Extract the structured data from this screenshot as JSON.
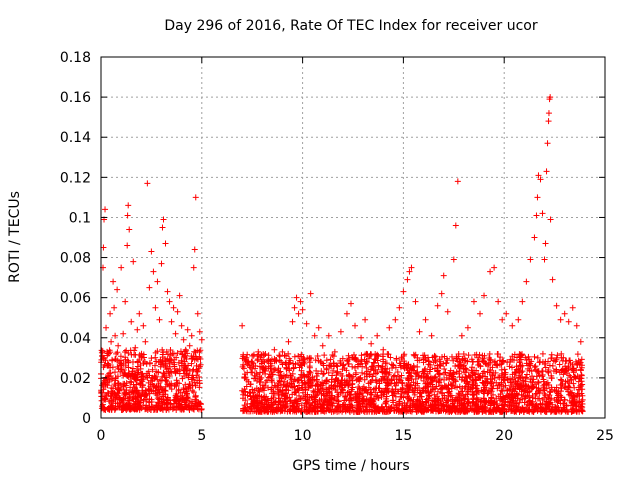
{
  "chart_data": {
    "type": "scatter",
    "title": "Day 296 of 2016, Rate Of TEC Index for receiver ucor",
    "xlabel": "GPS time / hours",
    "ylabel": "ROTI / TECUs",
    "xlim": [
      0,
      25
    ],
    "ylim": [
      0,
      0.18
    ],
    "x_ticks": [
      0,
      5,
      10,
      15,
      20,
      25
    ],
    "x_tick_labels": [
      "0",
      "5",
      "10",
      "15",
      "20",
      "25"
    ],
    "y_ticks": [
      0,
      0.02,
      0.04,
      0.06,
      0.08,
      0.1,
      0.12,
      0.14,
      0.16,
      0.18
    ],
    "y_tick_labels": [
      "0",
      "0.02",
      "0.04",
      "0.06",
      "0.08",
      "0.1",
      "0.12",
      "0.14",
      "0.16",
      "0.18"
    ],
    "grid": true,
    "marker": "+",
    "color": "#ff0000",
    "series": [
      {
        "name": "ROTI",
        "points": [
          [
            0.0,
            0.022
          ],
          [
            0.05,
            0.031
          ],
          [
            0.1,
            0.075
          ],
          [
            0.12,
            0.085
          ],
          [
            0.15,
            0.099
          ],
          [
            0.2,
            0.104
          ],
          [
            0.25,
            0.045
          ],
          [
            0.3,
            0.033
          ],
          [
            0.35,
            0.026
          ],
          [
            0.4,
            0.018
          ],
          [
            0.45,
            0.052
          ],
          [
            0.5,
            0.038
          ],
          [
            0.55,
            0.029
          ],
          [
            0.6,
            0.068
          ],
          [
            0.65,
            0.055
          ],
          [
            0.7,
            0.041
          ],
          [
            0.75,
            0.032
          ],
          [
            0.8,
            0.064
          ],
          [
            0.85,
            0.036
          ],
          [
            0.9,
            0.028
          ],
          [
            1.0,
            0.075
          ],
          [
            1.1,
            0.042
          ],
          [
            1.2,
            0.058
          ],
          [
            1.3,
            0.086
          ],
          [
            1.32,
            0.101
          ],
          [
            1.35,
            0.106
          ],
          [
            1.4,
            0.094
          ],
          [
            1.5,
            0.048
          ],
          [
            1.6,
            0.078
          ],
          [
            1.7,
            0.035
          ],
          [
            1.8,
            0.044
          ],
          [
            1.9,
            0.052
          ],
          [
            2.0,
            0.031
          ],
          [
            2.1,
            0.046
          ],
          [
            2.2,
            0.038
          ],
          [
            2.3,
            0.117
          ],
          [
            2.4,
            0.065
          ],
          [
            2.5,
            0.083
          ],
          [
            2.6,
            0.073
          ],
          [
            2.7,
            0.055
          ],
          [
            2.8,
            0.068
          ],
          [
            2.9,
            0.049
          ],
          [
            3.0,
            0.077
          ],
          [
            3.05,
            0.095
          ],
          [
            3.1,
            0.099
          ],
          [
            3.2,
            0.087
          ],
          [
            3.3,
            0.063
          ],
          [
            3.4,
            0.058
          ],
          [
            3.5,
            0.048
          ],
          [
            3.6,
            0.055
          ],
          [
            3.7,
            0.042
          ],
          [
            3.8,
            0.053
          ],
          [
            3.9,
            0.061
          ],
          [
            4.0,
            0.046
          ],
          [
            4.1,
            0.039
          ],
          [
            4.2,
            0.034
          ],
          [
            4.3,
            0.044
          ],
          [
            4.4,
            0.036
          ],
          [
            4.5,
            0.041
          ],
          [
            4.6,
            0.075
          ],
          [
            4.65,
            0.084
          ],
          [
            4.7,
            0.11
          ],
          [
            4.8,
            0.052
          ],
          [
            4.9,
            0.043
          ],
          [
            5.0,
            0.039
          ],
          [
            7.0,
            0.046
          ],
          [
            7.2,
            0.028
          ],
          [
            7.5,
            0.031
          ],
          [
            7.8,
            0.033
          ],
          [
            8.0,
            0.025
          ],
          [
            8.3,
            0.029
          ],
          [
            8.6,
            0.034
          ],
          [
            9.0,
            0.033
          ],
          [
            9.3,
            0.038
          ],
          [
            9.5,
            0.048
          ],
          [
            9.6,
            0.055
          ],
          [
            9.7,
            0.06
          ],
          [
            9.8,
            0.052
          ],
          [
            9.9,
            0.058
          ],
          [
            10.0,
            0.054
          ],
          [
            10.2,
            0.047
          ],
          [
            10.4,
            0.062
          ],
          [
            10.6,
            0.041
          ],
          [
            10.8,
            0.045
          ],
          [
            11.0,
            0.036
          ],
          [
            11.3,
            0.041
          ],
          [
            11.6,
            0.033
          ],
          [
            11.9,
            0.043
          ],
          [
            12.2,
            0.052
          ],
          [
            12.4,
            0.057
          ],
          [
            12.6,
            0.046
          ],
          [
            12.9,
            0.04
          ],
          [
            13.1,
            0.049
          ],
          [
            13.4,
            0.037
          ],
          [
            13.7,
            0.041
          ],
          [
            14.0,
            0.034
          ],
          [
            14.3,
            0.045
          ],
          [
            14.6,
            0.049
          ],
          [
            14.8,
            0.055
          ],
          [
            15.0,
            0.063
          ],
          [
            15.2,
            0.069
          ],
          [
            15.3,
            0.073
          ],
          [
            15.4,
            0.075
          ],
          [
            15.6,
            0.058
          ],
          [
            15.8,
            0.043
          ],
          [
            16.1,
            0.049
          ],
          [
            16.4,
            0.041
          ],
          [
            16.7,
            0.056
          ],
          [
            16.9,
            0.062
          ],
          [
            17.0,
            0.071
          ],
          [
            17.2,
            0.053
          ],
          [
            17.5,
            0.079
          ],
          [
            17.6,
            0.096
          ],
          [
            17.7,
            0.118
          ],
          [
            17.9,
            0.041
          ],
          [
            18.2,
            0.045
          ],
          [
            18.5,
            0.058
          ],
          [
            18.8,
            0.052
          ],
          [
            19.0,
            0.061
          ],
          [
            19.3,
            0.073
          ],
          [
            19.5,
            0.075
          ],
          [
            19.7,
            0.058
          ],
          [
            19.9,
            0.049
          ],
          [
            20.1,
            0.052
          ],
          [
            20.4,
            0.046
          ],
          [
            20.7,
            0.049
          ],
          [
            20.9,
            0.058
          ],
          [
            21.1,
            0.068
          ],
          [
            21.3,
            0.079
          ],
          [
            21.5,
            0.09
          ],
          [
            21.6,
            0.101
          ],
          [
            21.65,
            0.11
          ],
          [
            21.7,
            0.121
          ],
          [
            21.8,
            0.119
          ],
          [
            21.9,
            0.102
          ],
          [
            22.0,
            0.079
          ],
          [
            22.05,
            0.087
          ],
          [
            22.1,
            0.123
          ],
          [
            22.15,
            0.137
          ],
          [
            22.2,
            0.148
          ],
          [
            22.22,
            0.152
          ],
          [
            22.25,
            0.159
          ],
          [
            22.28,
            0.16
          ],
          [
            22.3,
            0.099
          ],
          [
            22.4,
            0.069
          ],
          [
            22.6,
            0.056
          ],
          [
            22.8,
            0.049
          ],
          [
            23.0,
            0.052
          ],
          [
            23.2,
            0.048
          ],
          [
            23.4,
            0.055
          ],
          [
            23.6,
            0.046
          ],
          [
            23.8,
            0.038
          ]
        ]
      }
    ],
    "dense_bands": [
      {
        "x_range": [
          0.0,
          5.0
        ],
        "y_range": [
          0.004,
          0.034
        ]
      },
      {
        "x_range": [
          7.0,
          23.9
        ],
        "y_range": [
          0.003,
          0.032
        ]
      }
    ]
  }
}
